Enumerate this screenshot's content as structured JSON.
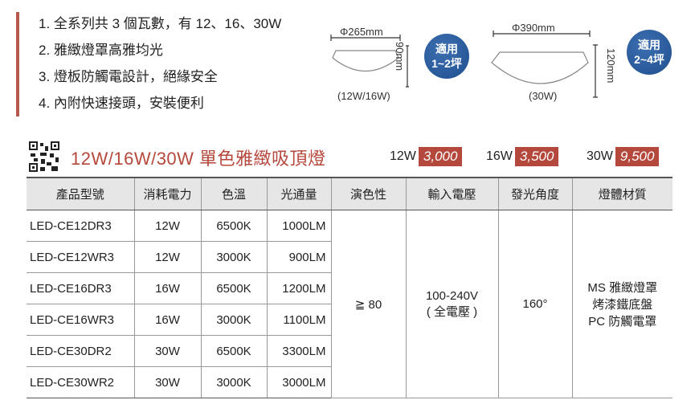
{
  "features": [
    "1. 全系列共 3 個瓦數，有 12、16、30W",
    "2. 雅緻燈罩高雅均光",
    "3. 燈板防觸電設計，絕緣安全",
    "4. 內附快速接頭，安裝便利"
  ],
  "small": {
    "diameter": "Φ265mm",
    "height": "90mm",
    "label": "(12W/16W)",
    "badge1": "適用",
    "badge2": "1~2坪"
  },
  "large": {
    "diameter": "Φ390mm",
    "height": "120mm",
    "label": "(30W)",
    "badge1": "適用",
    "badge2": "2~4坪"
  },
  "title": "12W/16W/30W 單色雅緻吸頂燈",
  "prices": [
    {
      "w": "12W",
      "p": "3,000"
    },
    {
      "w": "16W",
      "p": "3,500"
    },
    {
      "w": "30W",
      "p": "9,500"
    }
  ],
  "headers": [
    "產品型號",
    "消耗電力",
    "色溫",
    "光通量",
    "演色性",
    "輸入電壓",
    "發光角度",
    "燈體材質"
  ],
  "rows": [
    [
      "LED-CE12DR3",
      "12W",
      "6500K",
      "1000LM"
    ],
    [
      "LED-CE12WR3",
      "12W",
      "3000K",
      "900LM"
    ],
    [
      "LED-CE16DR3",
      "16W",
      "6500K",
      "1200LM"
    ],
    [
      "LED-CE16WR3",
      "16W",
      "3000K",
      "1100LM"
    ],
    [
      "LED-CE30DR2",
      "30W",
      "6500K",
      "3300LM"
    ],
    [
      "LED-CE30WR2",
      "30W",
      "3000K",
      "3000LM"
    ]
  ],
  "shared": {
    "cri": "≧ 80",
    "voltage1": "100-240V",
    "voltage2": "( 全電壓 )",
    "angle": "160°",
    "mat1": "MS 雅緻燈罩",
    "mat2": "烤漆鐵底盤",
    "mat3": "PC 防觸電罩"
  },
  "colors": {
    "accent": "#b5483c",
    "badge": "#2a5a9a"
  }
}
